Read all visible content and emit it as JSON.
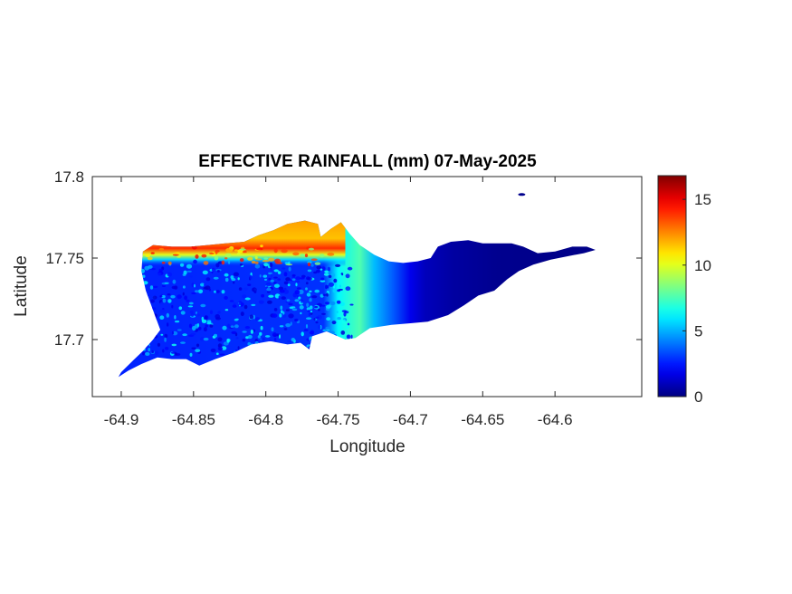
{
  "chart_data": {
    "type": "heatmap",
    "title": "EFFECTIVE RAINFALL (mm) 07-May-2025",
    "xlabel": "Longitude",
    "ylabel": "Latitude",
    "xlim": [
      -64.92,
      -64.54
    ],
    "ylim": [
      17.665,
      17.8
    ],
    "x_ticks": [
      -64.9,
      -64.85,
      -64.8,
      -64.75,
      -64.7,
      -64.65,
      -64.6
    ],
    "x_tick_labels": [
      "-64.9",
      "-64.85",
      "-64.8",
      "-64.75",
      "-64.7",
      "-64.65",
      "-64.6"
    ],
    "y_ticks": [
      17.7,
      17.75,
      17.8
    ],
    "y_tick_labels": [
      "17.7",
      "17.75",
      "17.8"
    ],
    "grid": false,
    "colormap": "jet",
    "colorbar": {
      "range": [
        0,
        16.8
      ],
      "ticks": [
        0,
        5,
        10,
        15
      ],
      "tick_labels": [
        "0",
        "5",
        "10",
        "15"
      ]
    },
    "pattern": "highest rainfall (~12-16 mm) along the north coast in the west, ~2-4 mm across the western interior, ~5-9 mm in the center, decreasing to ~0-1 mm toward the east end",
    "outline": [
      [
        -64.9,
        17.68
      ],
      [
        -64.892,
        17.687
      ],
      [
        -64.885,
        17.693
      ],
      [
        -64.878,
        17.7
      ],
      [
        -64.873,
        17.706
      ],
      [
        -64.878,
        17.718
      ],
      [
        -64.883,
        17.73
      ],
      [
        -64.886,
        17.742
      ],
      [
        -64.885,
        17.754
      ],
      [
        -64.878,
        17.758
      ],
      [
        -64.865,
        17.757
      ],
      [
        -64.852,
        17.757
      ],
      [
        -64.84,
        17.758
      ],
      [
        -64.828,
        17.759
      ],
      [
        -64.815,
        17.76
      ],
      [
        -64.805,
        17.764
      ],
      [
        -64.795,
        17.767
      ],
      [
        -64.785,
        17.771
      ],
      [
        -64.773,
        17.773
      ],
      [
        -64.764,
        17.771
      ],
      [
        -64.762,
        17.763
      ],
      [
        -64.755,
        17.768
      ],
      [
        -64.748,
        17.772
      ],
      [
        -64.742,
        17.765
      ],
      [
        -64.735,
        17.758
      ],
      [
        -64.725,
        17.752
      ],
      [
        -64.715,
        17.748
      ],
      [
        -64.705,
        17.747
      ],
      [
        -64.695,
        17.748
      ],
      [
        -64.686,
        17.75
      ],
      [
        -64.681,
        17.757
      ],
      [
        -64.672,
        17.76
      ],
      [
        -64.66,
        17.761
      ],
      [
        -64.65,
        17.759
      ],
      [
        -64.64,
        17.759
      ],
      [
        -64.63,
        17.759
      ],
      [
        -64.622,
        17.757
      ],
      [
        -64.612,
        17.753
      ],
      [
        -64.6,
        17.754
      ],
      [
        -64.588,
        17.757
      ],
      [
        -64.578,
        17.757
      ],
      [
        -64.572,
        17.755
      ],
      [
        -64.58,
        17.753
      ],
      [
        -64.592,
        17.751
      ],
      [
        -64.603,
        17.749
      ],
      [
        -64.615,
        17.746
      ],
      [
        -64.625,
        17.742
      ],
      [
        -64.633,
        17.737
      ],
      [
        -64.642,
        17.73
      ],
      [
        -64.653,
        17.727
      ],
      [
        -64.663,
        17.721
      ],
      [
        -64.674,
        17.715
      ],
      [
        -64.688,
        17.711
      ],
      [
        -64.7,
        17.71
      ],
      [
        -64.713,
        17.709
      ],
      [
        -64.728,
        17.707
      ],
      [
        -64.738,
        17.701
      ],
      [
        -64.745,
        17.7
      ],
      [
        -64.758,
        17.705
      ],
      [
        -64.768,
        17.702
      ],
      [
        -64.77,
        17.694
      ],
      [
        -64.776,
        17.698
      ],
      [
        -64.785,
        17.697
      ],
      [
        -64.797,
        17.699
      ],
      [
        -64.81,
        17.697
      ],
      [
        -64.822,
        17.692
      ],
      [
        -64.835,
        17.688
      ],
      [
        -64.846,
        17.684
      ],
      [
        -64.855,
        17.688
      ],
      [
        -64.865,
        17.688
      ],
      [
        -64.875,
        17.689
      ],
      [
        -64.886,
        17.685
      ],
      [
        -64.895,
        17.681
      ],
      [
        -64.902,
        17.677
      ]
    ],
    "islet": {
      "lon": -64.623,
      "lat": 17.789
    }
  }
}
